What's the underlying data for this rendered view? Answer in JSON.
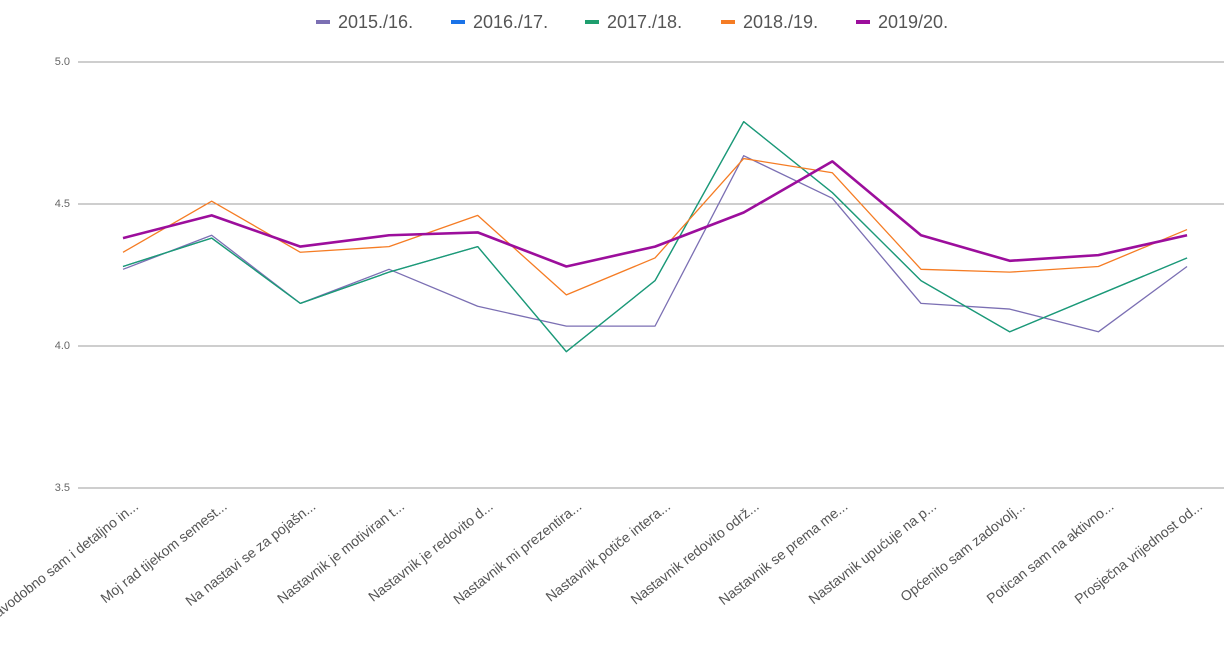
{
  "chart_data": {
    "type": "line",
    "categories": [
      "Pravodobno sam i detaljno in...",
      "Moj rad tijekom semest...",
      "Na nastavi se za pojašn...",
      "Nastavnik je motiviran t...",
      "Nastavnik je redovito d...",
      "Nastavnik mi prezentira...",
      "Nastavnik potiče intera...",
      "Nastavnik redovito održ...",
      "Nastavnik se prema me...",
      "Nastavnik upućuje na p...",
      "Općenito sam zadovolj...",
      "Potican sam na aktivno...",
      "Prosječna vrijednost od..."
    ],
    "series": [
      {
        "name": "2015./16.",
        "color": "#7b6fb3",
        "values": [
          4.27,
          4.39,
          4.15,
          4.27,
          4.14,
          4.07,
          4.07,
          4.67,
          4.52,
          4.15,
          4.13,
          4.05,
          4.28
        ]
      },
      {
        "name": "2016./17.",
        "color": "#1a73e8",
        "values": [
          4.28,
          4.38,
          4.15,
          4.26,
          4.35,
          3.98,
          4.23,
          4.79,
          4.54,
          4.23,
          4.05,
          4.18,
          4.31
        ]
      },
      {
        "name": "2017./18.",
        "color": "#1e9e6e",
        "values": [
          4.28,
          4.38,
          4.15,
          4.26,
          4.35,
          3.98,
          4.23,
          4.79,
          4.54,
          4.23,
          4.05,
          4.18,
          4.31
        ]
      },
      {
        "name": "2018./19.",
        "color": "#f57c24",
        "values": [
          4.33,
          4.51,
          4.33,
          4.35,
          4.46,
          4.18,
          4.31,
          4.66,
          4.61,
          4.27,
          4.26,
          4.28,
          4.41
        ]
      },
      {
        "name": "2019/20.",
        "color": "#9c0e9c",
        "values": [
          4.38,
          4.46,
          4.35,
          4.39,
          4.4,
          4.28,
          4.35,
          4.47,
          4.65,
          4.39,
          4.3,
          4.32,
          4.39
        ]
      }
    ],
    "ylim": [
      3.5,
      5
    ],
    "yticks": [
      {
        "value": 3.5,
        "label": "3.5"
      },
      {
        "value": 4,
        "label": "4.0"
      },
      {
        "value": 4.5,
        "label": "4.5"
      },
      {
        "value": 5,
        "label": "5.0"
      }
    ],
    "grid": true,
    "legend": "top"
  }
}
